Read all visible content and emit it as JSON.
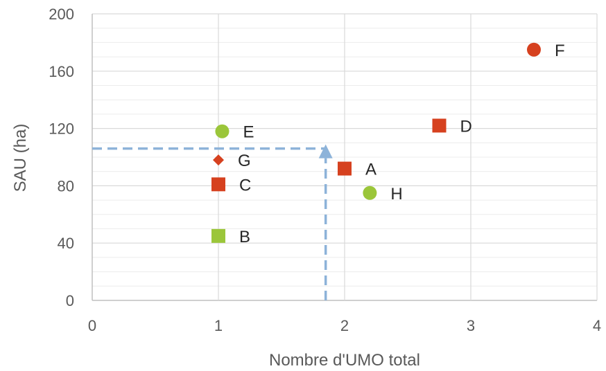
{
  "chart_data": {
    "type": "scatter",
    "title": "",
    "xlabel": "Nombre d'UMO total",
    "ylabel": "SAU (ha)",
    "xlim": [
      0,
      4
    ],
    "ylim": [
      0,
      200
    ],
    "x_ticks": [
      0,
      1,
      2,
      3,
      4
    ],
    "y_ticks": [
      0,
      40,
      80,
      120,
      160,
      200
    ],
    "grid": {
      "major": true,
      "minor_y_step": 10
    },
    "points": [
      {
        "label": "A",
        "x": 2.0,
        "y": 92,
        "shape": "square",
        "color": "#d6411f"
      },
      {
        "label": "B",
        "x": 1.0,
        "y": 45,
        "shape": "square",
        "color": "#9bc63a"
      },
      {
        "label": "C",
        "x": 1.0,
        "y": 81,
        "shape": "square",
        "color": "#d6411f"
      },
      {
        "label": "D",
        "x": 2.75,
        "y": 122,
        "shape": "square",
        "color": "#d6411f"
      },
      {
        "label": "E",
        "x": 1.03,
        "y": 118,
        "shape": "circle",
        "color": "#9bc63a"
      },
      {
        "label": "F",
        "x": 3.5,
        "y": 175,
        "shape": "circle",
        "color": "#d6411f"
      },
      {
        "label": "G",
        "x": 1.0,
        "y": 98,
        "shape": "diamond",
        "color": "#d6411f"
      },
      {
        "label": "H",
        "x": 2.2,
        "y": 75,
        "shape": "circle",
        "color": "#9bc63a"
      }
    ],
    "reference_lines": {
      "x": 1.85,
      "y": 106,
      "color": "#8db3d9",
      "style": "dashed-arrow-up"
    }
  }
}
